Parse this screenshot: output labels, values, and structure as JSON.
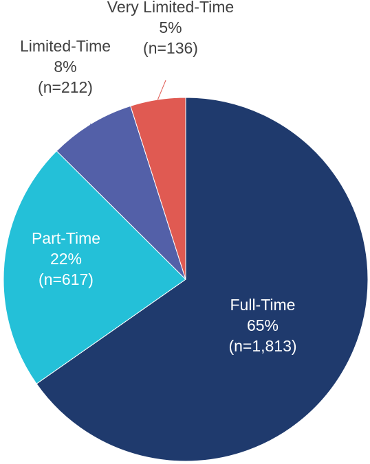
{
  "chart_data": {
    "type": "pie",
    "title": "",
    "slices": [
      {
        "label": "Full-Time",
        "percent_text": "65%",
        "n_text": "(n=1,813)",
        "n": 1813,
        "color": "#1f3a6d"
      },
      {
        "label": "Part-Time",
        "percent_text": "22%",
        "n_text": "(n=617)",
        "n": 617,
        "color": "#24c0d8"
      },
      {
        "label": "Limited-Time",
        "percent_text": "8%",
        "n_text": "(n=212)",
        "n": 212,
        "color": "#5360a8"
      },
      {
        "label": "Very Limited-Time",
        "percent_text": "5%",
        "n_text": "(n=136)",
        "n": 136,
        "color": "#e05a52"
      }
    ],
    "legend": "none",
    "start_angle_deg": 0,
    "direction": "clockwise"
  }
}
